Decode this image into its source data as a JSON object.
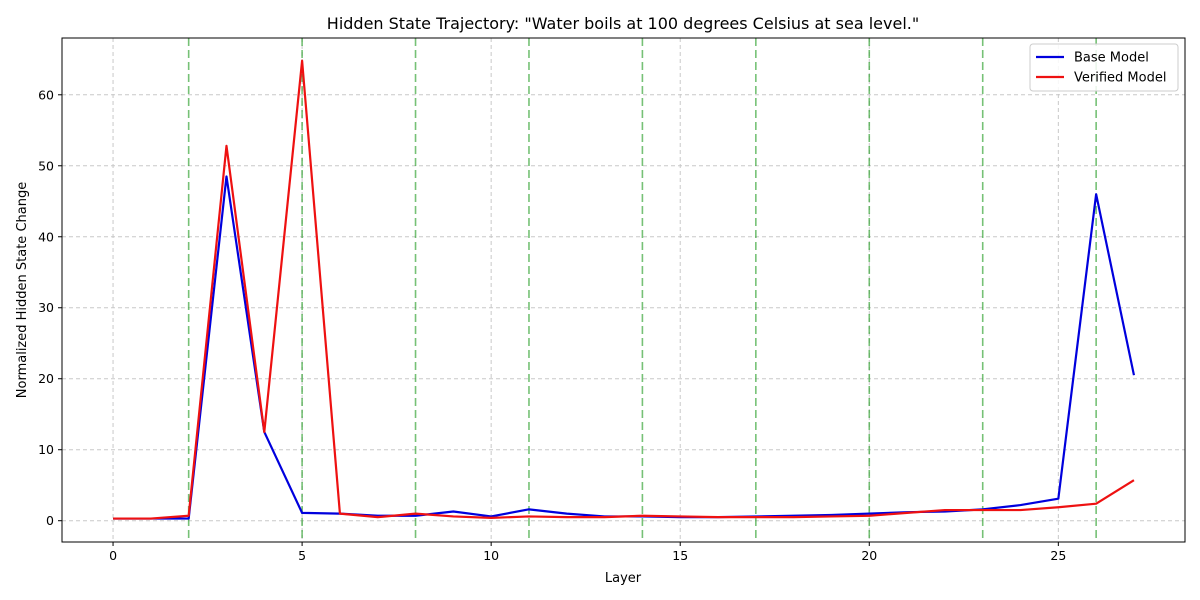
{
  "chart_data": {
    "type": "line",
    "title": "Hidden State Trajectory: \"Water boils at 100 degrees Celsius at sea level.\"",
    "xlabel": "Layer",
    "ylabel": "Normalized Hidden State Change",
    "xlim": [
      -1.35,
      28.35
    ],
    "ylim": [
      -3,
      68
    ],
    "xticks": [
      0,
      5,
      10,
      15,
      20,
      25
    ],
    "yticks": [
      0,
      10,
      20,
      30,
      40,
      50,
      60
    ],
    "grid": true,
    "legend_position": "top-right",
    "vlines": [
      2,
      5,
      8,
      11,
      14,
      17,
      20,
      23,
      26
    ],
    "vline_color": "#2ca02c",
    "series": [
      {
        "name": "Base Model",
        "color": "#0000dd",
        "x": [
          0,
          1,
          2,
          3,
          4,
          5,
          6,
          7,
          8,
          9,
          10,
          11,
          12,
          13,
          14,
          15,
          16,
          17,
          18,
          19,
          20,
          21,
          22,
          23,
          24,
          25,
          26,
          27
        ],
        "values": [
          0.3,
          0.3,
          0.3,
          48.5,
          12.5,
          1.1,
          1.0,
          0.7,
          0.7,
          1.3,
          0.6,
          1.6,
          1.0,
          0.6,
          0.6,
          0.5,
          0.5,
          0.6,
          0.7,
          0.8,
          1.0,
          1.2,
          1.3,
          1.6,
          2.2,
          3.1,
          46.0,
          20.5
        ]
      },
      {
        "name": "Verified Model",
        "color": "#ee1111",
        "x": [
          0,
          1,
          2,
          3,
          4,
          5,
          6,
          7,
          8,
          9,
          10,
          11,
          12,
          13,
          14,
          15,
          16,
          17,
          18,
          19,
          20,
          21,
          22,
          23,
          24,
          25,
          26,
          27
        ],
        "values": [
          0.3,
          0.3,
          0.7,
          52.8,
          12.5,
          64.8,
          1.0,
          0.5,
          1.0,
          0.6,
          0.4,
          0.6,
          0.5,
          0.5,
          0.7,
          0.6,
          0.5,
          0.5,
          0.5,
          0.6,
          0.7,
          1.1,
          1.5,
          1.5,
          1.5,
          1.9,
          2.4,
          5.7
        ]
      }
    ]
  }
}
